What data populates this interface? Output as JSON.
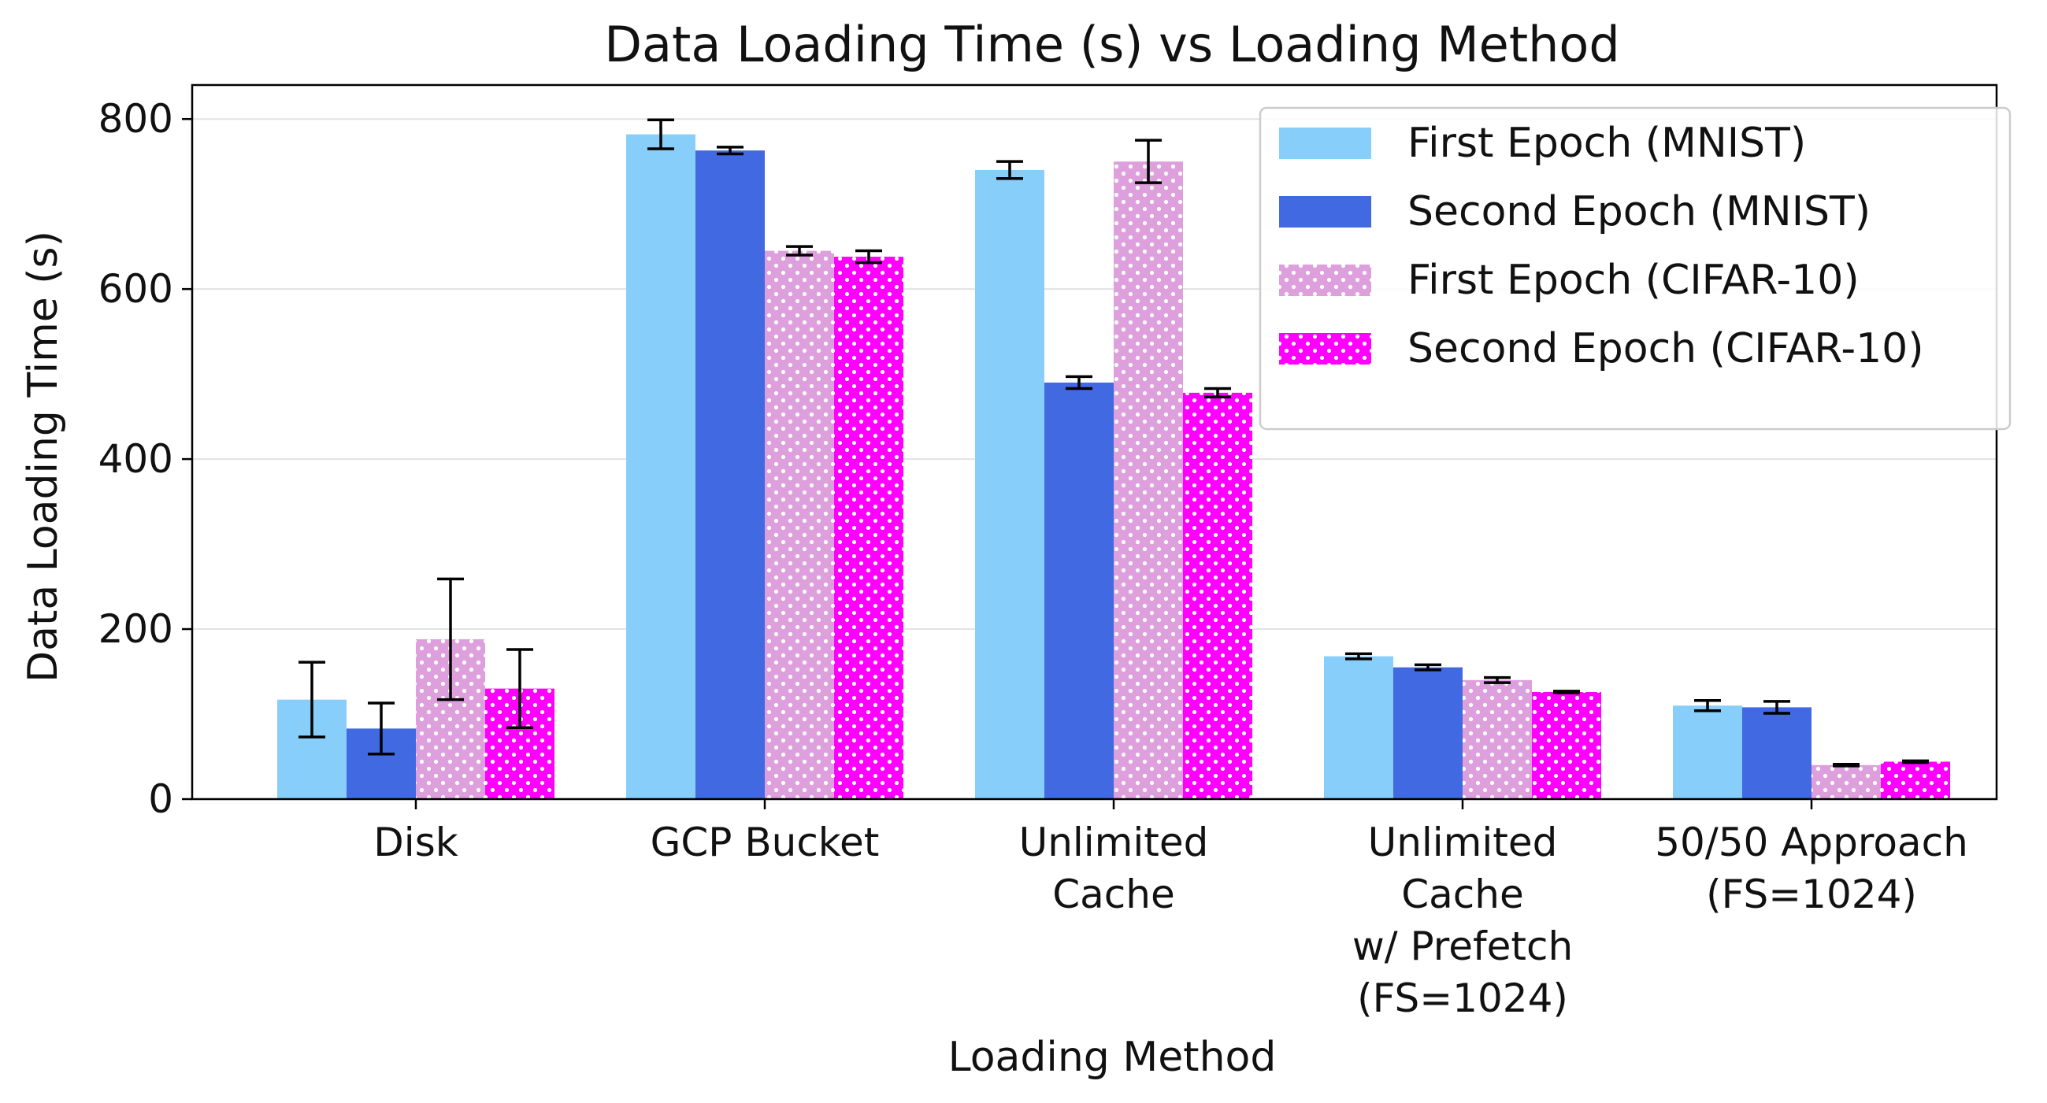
{
  "chart_data": {
    "type": "bar",
    "title": "Data Loading Time (s) vs Loading Method",
    "xlabel": "Loading Method",
    "ylabel": "Data Loading Time (s)",
    "ylim": [
      0,
      840
    ],
    "yticks": [
      0,
      200,
      400,
      600,
      800
    ],
    "grid": "horizontal",
    "legend_position": "top-right",
    "categories": [
      [
        "Disk"
      ],
      [
        "GCP Bucket"
      ],
      [
        "Unlimited",
        "Cache"
      ],
      [
        "Unlimited",
        "Cache",
        "w/ Prefetch",
        "(FS=1024)"
      ],
      [
        "50/50 Approach",
        "(FS=1024)"
      ]
    ],
    "series": [
      {
        "name": "First Epoch (MNIST)",
        "color": "#87cefa",
        "pattern": "none",
        "values": [
          117,
          782,
          740,
          168,
          110
        ],
        "errors": [
          44,
          17,
          10,
          3,
          6
        ]
      },
      {
        "name": "Second Epoch (MNIST)",
        "color": "#4169e1",
        "pattern": "none",
        "values": [
          83,
          763,
          490,
          155,
          108
        ],
        "errors": [
          30,
          4,
          7,
          3,
          7
        ]
      },
      {
        "name": "First Epoch (CIFAR-10)",
        "color": "#dda0dd",
        "pattern": "dots",
        "values": [
          188,
          645,
          750,
          140,
          40
        ],
        "errors": [
          71,
          5,
          25,
          3,
          1
        ]
      },
      {
        "name": "Second Epoch (CIFAR-10)",
        "color": "#ff00ff",
        "pattern": "dots",
        "values": [
          130,
          638,
          478,
          126,
          44
        ],
        "errors": [
          46,
          7,
          5,
          1,
          1
        ]
      }
    ]
  }
}
